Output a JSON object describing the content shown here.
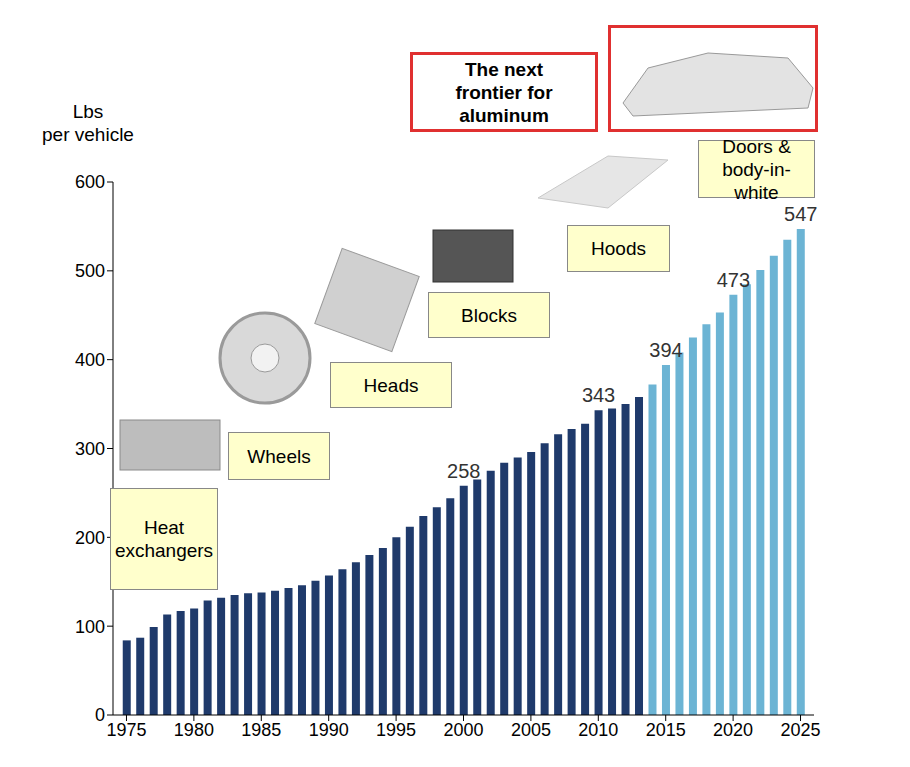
{
  "chart_data": {
    "type": "bar",
    "ylabel": "Lbs per vehicle",
    "callout": "The next frontier for aluminum",
    "annotations": [
      "Heat exchangers",
      "Wheels",
      "Heads",
      "Blocks",
      "Hoods",
      "Doors & body-in-white"
    ],
    "x": [
      1975,
      1976,
      1977,
      1978,
      1979,
      1980,
      1981,
      1982,
      1983,
      1984,
      1985,
      1986,
      1987,
      1988,
      1989,
      1990,
      1991,
      1992,
      1993,
      1994,
      1995,
      1996,
      1997,
      1998,
      1999,
      2000,
      2001,
      2002,
      2003,
      2004,
      2005,
      2006,
      2007,
      2008,
      2009,
      2010,
      2011,
      2012,
      2013,
      2014,
      2015,
      2016,
      2017,
      2018,
      2019,
      2020,
      2021,
      2022,
      2023,
      2024,
      2025
    ],
    "values": [
      84,
      87,
      99,
      113,
      117,
      120,
      129,
      132,
      135,
      137,
      138,
      140,
      143,
      146,
      151,
      157,
      164,
      172,
      180,
      188,
      200,
      212,
      224,
      234,
      244,
      258,
      265,
      275,
      284,
      290,
      296,
      306,
      316,
      322,
      328,
      343,
      345,
      350,
      358,
      372,
      394,
      408,
      425,
      440,
      453,
      473,
      485,
      501,
      517,
      535,
      547
    ],
    "value_labels": [
      null,
      null,
      null,
      null,
      null,
      null,
      null,
      null,
      null,
      null,
      null,
      null,
      null,
      null,
      null,
      null,
      null,
      null,
      null,
      null,
      null,
      null,
      null,
      null,
      null,
      "258",
      null,
      null,
      null,
      null,
      null,
      null,
      null,
      null,
      null,
      "343",
      null,
      null,
      null,
      null,
      "394",
      null,
      null,
      null,
      null,
      "473",
      null,
      null,
      null,
      null,
      "547"
    ],
    "colors": [
      "#1f3a6b",
      "#1f3a6b",
      "#1f3a6b",
      "#1f3a6b",
      "#1f3a6b",
      "#1f3a6b",
      "#1f3a6b",
      "#1f3a6b",
      "#1f3a6b",
      "#1f3a6b",
      "#1f3a6b",
      "#1f3a6b",
      "#1f3a6b",
      "#1f3a6b",
      "#1f3a6b",
      "#1f3a6b",
      "#1f3a6b",
      "#1f3a6b",
      "#1f3a6b",
      "#1f3a6b",
      "#1f3a6b",
      "#1f3a6b",
      "#1f3a6b",
      "#1f3a6b",
      "#1f3a6b",
      "#1f3a6b",
      "#1f3a6b",
      "#1f3a6b",
      "#1f3a6b",
      "#1f3a6b",
      "#1f3a6b",
      "#1f3a6b",
      "#1f3a6b",
      "#1f3a6b",
      "#1f3a6b",
      "#1f3a6b",
      "#1f3a6b",
      "#1f3a6b",
      "#1f3a6b",
      "#6cb4d4",
      "#6cb4d4",
      "#6cb4d4",
      "#6cb4d4",
      "#6cb4d4",
      "#6cb4d4",
      "#6cb4d4",
      "#6cb4d4",
      "#6cb4d4",
      "#6cb4d4",
      "#6cb4d4",
      "#6cb4d4"
    ],
    "xlim": [
      1974,
      2026
    ],
    "xticks": [
      1975,
      1980,
      1985,
      1990,
      1995,
      2000,
      2005,
      2010,
      2015,
      2020,
      2025
    ],
    "ylim": [
      0,
      600
    ],
    "yticks": [
      0,
      100,
      200,
      300,
      400,
      500,
      600
    ],
    "grid": false
  }
}
